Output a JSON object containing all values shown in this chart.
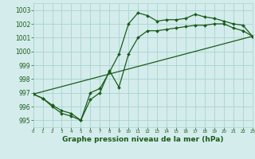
{
  "background_color": "#d4ecec",
  "grid_color": "#a8d4d0",
  "line_color": "#1a5c1a",
  "title": "Graphe pression niveau de la mer (hPa)",
  "xlim": [
    0,
    23
  ],
  "ylim": [
    994.5,
    1003.5
  ],
  "yticks": [
    995,
    996,
    997,
    998,
    999,
    1000,
    1001,
    1002,
    1003
  ],
  "xticks": [
    0,
    1,
    2,
    3,
    4,
    5,
    6,
    7,
    8,
    9,
    10,
    11,
    12,
    13,
    14,
    15,
    16,
    17,
    18,
    19,
    20,
    21,
    22,
    23
  ],
  "line1_x": [
    0,
    1,
    2,
    3,
    4,
    5,
    6,
    7,
    8,
    9,
    10,
    11,
    12,
    13,
    14,
    15,
    16,
    17,
    18,
    19,
    20,
    21,
    22,
    23
  ],
  "line1_y": [
    996.9,
    996.6,
    996.0,
    995.5,
    995.3,
    995.0,
    997.0,
    997.3,
    998.5,
    999.8,
    1002.0,
    1002.8,
    1002.6,
    1002.2,
    1002.3,
    1002.3,
    1002.4,
    1002.7,
    1002.5,
    1002.4,
    1002.2,
    1002.0,
    1001.9,
    1001.1
  ],
  "line2_x": [
    0,
    1,
    2,
    3,
    4,
    5,
    6,
    7,
    8,
    9,
    10,
    11,
    12,
    13,
    14,
    15,
    16,
    17,
    18,
    19,
    20,
    21,
    22,
    23
  ],
  "line2_y": [
    996.9,
    996.6,
    996.1,
    995.7,
    995.5,
    995.0,
    996.5,
    997.0,
    998.6,
    997.4,
    999.8,
    1001.0,
    1001.5,
    1001.5,
    1001.6,
    1001.7,
    1001.8,
    1001.9,
    1001.9,
    1002.0,
    1002.0,
    1001.7,
    1001.5,
    1001.1
  ],
  "line3_x": [
    0,
    23
  ],
  "line3_y": [
    996.9,
    1001.1
  ]
}
